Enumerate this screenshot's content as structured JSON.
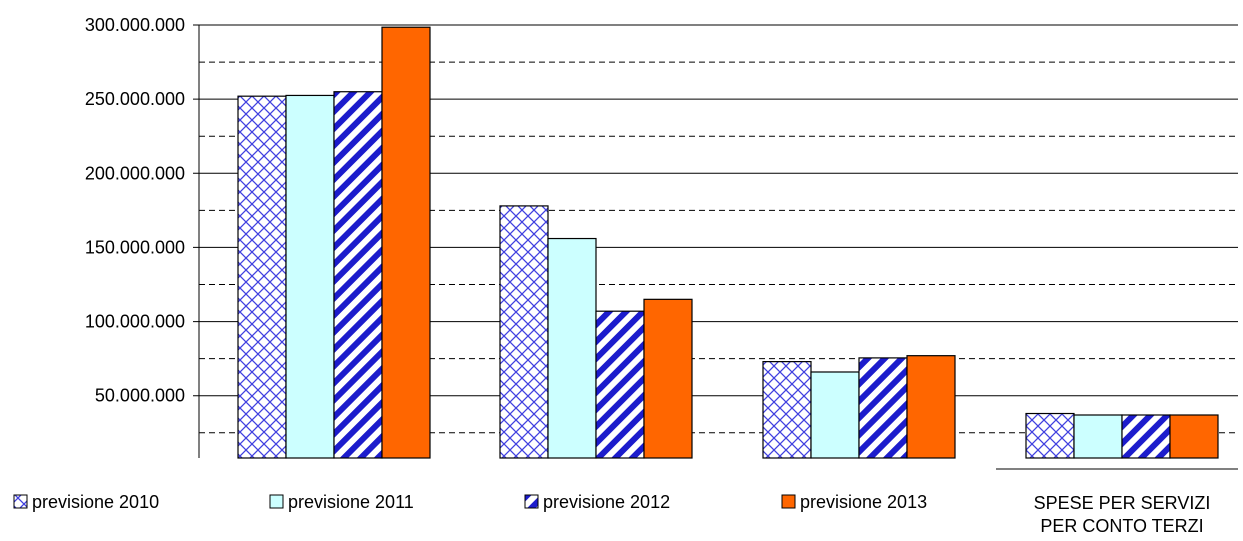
{
  "chart_data": {
    "type": "bar",
    "categories": [
      "",
      "",
      "",
      "SPESE PER SERVIZI PER CONTO TERZI"
    ],
    "category_label_lines": [
      [],
      [],
      [],
      [
        "SPESE PER SERVIZI",
        "PER CONTO TERZI"
      ]
    ],
    "series": [
      {
        "name": "previsione 2010",
        "values": [
          252000000,
          178000000,
          73000000,
          38000000
        ],
        "pattern": "crosshatch",
        "color": "#3a3adf"
      },
      {
        "name": "previsione 2011",
        "values": [
          252500000,
          156000000,
          66000000,
          37000000
        ],
        "pattern": "solid",
        "color": "#ccffff"
      },
      {
        "name": "previsione 2012",
        "values": [
          255000000,
          107000000,
          75500000,
          37000000
        ],
        "pattern": "diagonal",
        "color": "#2222cc"
      },
      {
        "name": "previsione 2013",
        "values": [
          298500000,
          115000000,
          77000000,
          37000000
        ],
        "pattern": "solid",
        "color": "#ff6600"
      }
    ],
    "ylim": [
      0,
      300000000
    ],
    "yticks": [
      {
        "value": 50000000,
        "label": "50.000.000"
      },
      {
        "value": 100000000,
        "label": "100.000.000"
      },
      {
        "value": 150000000,
        "label": "150.000.000"
      },
      {
        "value": 200000000,
        "label": "200.000.000"
      },
      {
        "value": 250000000,
        "label": "250.000.000"
      },
      {
        "value": 300000000,
        "label": "300.000.000"
      }
    ],
    "minor_gridlines": [
      25000000,
      75000000,
      125000000,
      175000000,
      225000000,
      275000000
    ],
    "legend_position": "bottom",
    "grid": true
  }
}
